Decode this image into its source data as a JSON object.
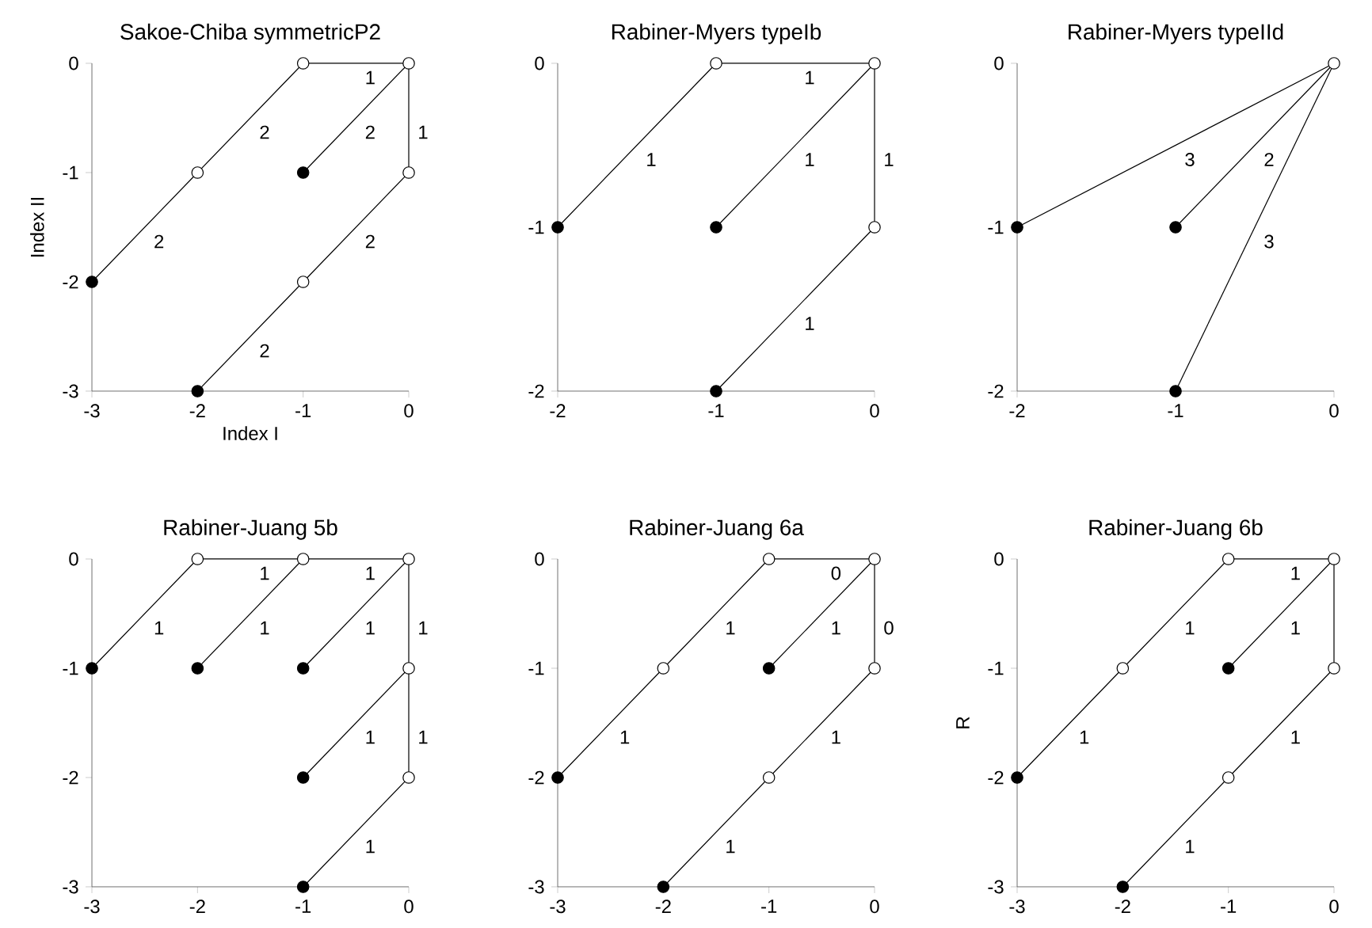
{
  "chart_data": [
    {
      "type": "line",
      "title": "Sakoe-Chiba symmetricP2",
      "xlabel": "Index I",
      "ylabel": "Index II",
      "xlim": [
        -3,
        0
      ],
      "ylim": [
        -3,
        0
      ],
      "xticks": [
        -3,
        -2,
        -1,
        0
      ],
      "yticks": [
        -3,
        -2,
        -1,
        0
      ],
      "series": [
        {
          "color": "#000000",
          "x": [
            -3,
            -2,
            -1,
            0
          ],
          "values": [
            -2,
            -1,
            0,
            0
          ]
        },
        {
          "color": "#000000",
          "x": [
            -1,
            0
          ],
          "values": [
            -1,
            0
          ]
        },
        {
          "color": "#000000",
          "x": [
            -2,
            -1,
            0,
            0
          ],
          "values": [
            -3,
            -2,
            -1,
            0
          ]
        },
        {
          "type": "scatter",
          "color": "#ffffff",
          "x": [
            -2,
            -1,
            0,
            -1,
            0
          ],
          "values": [
            -1,
            0,
            0,
            -2,
            -1
          ]
        },
        {
          "type": "scatter",
          "color": "#000000",
          "x": [
            -3,
            -1,
            -2
          ],
          "values": [
            -2,
            -1,
            -3
          ]
        }
      ],
      "annotations": [
        {
          "text": "2",
          "x": -2.5,
          "y": -1.5
        },
        {
          "text": "2",
          "x": -1.5,
          "y": -0.5
        },
        {
          "text": "1",
          "x": -0.5,
          "y": 0
        },
        {
          "text": "2",
          "x": -0.5,
          "y": -0.5
        },
        {
          "text": "2",
          "x": -1.5,
          "y": -2.5
        },
        {
          "text": "2",
          "x": -0.5,
          "y": -1.5
        },
        {
          "text": "1",
          "x": 0,
          "y": -0.5
        }
      ]
    },
    {
      "type": "line",
      "title": "Rabiner-Myers typeIb",
      "xlim": [
        -2,
        0
      ],
      "ylim": [
        -2,
        0
      ],
      "xticks": [
        -2,
        -1,
        0
      ],
      "yticks": [
        -2,
        -1,
        0
      ],
      "series": [
        {
          "color": "#000000",
          "x": [
            -2,
            -1,
            0
          ],
          "values": [
            -1,
            0,
            0
          ]
        },
        {
          "color": "#000000",
          "x": [
            -1,
            0
          ],
          "values": [
            -1,
            0
          ]
        },
        {
          "color": "#000000",
          "x": [
            -1,
            0,
            0
          ],
          "values": [
            -2,
            -1,
            0
          ]
        },
        {
          "type": "scatter",
          "color": "#ffffff",
          "x": [
            -1,
            0,
            0
          ],
          "values": [
            0,
            0,
            -1
          ]
        },
        {
          "type": "scatter",
          "color": "#000000",
          "x": [
            -2,
            -1,
            -1
          ],
          "values": [
            -1,
            -1,
            -2
          ]
        }
      ],
      "annotations": [
        {
          "text": "1",
          "x": -1.5,
          "y": -0.5
        },
        {
          "text": "1",
          "x": -0.5,
          "y": 0
        },
        {
          "text": "1",
          "x": -0.5,
          "y": -0.5
        },
        {
          "text": "1",
          "x": -0.5,
          "y": -1.5
        },
        {
          "text": "1",
          "x": 0,
          "y": -0.5
        }
      ]
    },
    {
      "type": "line",
      "title": "Rabiner-Myers typeIId",
      "xlim": [
        -2,
        0
      ],
      "ylim": [
        -2,
        0
      ],
      "xticks": [
        -2,
        -1,
        0
      ],
      "yticks": [
        -2,
        -1,
        0
      ],
      "series": [
        {
          "color": "#000000",
          "x": [
            -2,
            0
          ],
          "values": [
            -1,
            0
          ]
        },
        {
          "color": "#000000",
          "x": [
            -1,
            0
          ],
          "values": [
            -1,
            0
          ]
        },
        {
          "color": "#000000",
          "x": [
            -1,
            0
          ],
          "values": [
            -2,
            0
          ]
        },
        {
          "type": "scatter",
          "color": "#ffffff",
          "x": [
            0
          ],
          "values": [
            0
          ]
        },
        {
          "type": "scatter",
          "color": "#000000",
          "x": [
            -2,
            -1,
            -1
          ],
          "values": [
            -1,
            -1,
            -2
          ]
        }
      ],
      "annotations": [
        {
          "text": "3",
          "x": -1,
          "y": -0.5
        },
        {
          "text": "2",
          "x": -0.5,
          "y": -0.5
        },
        {
          "text": "3",
          "x": -0.5,
          "y": -1
        }
      ]
    },
    {
      "type": "line",
      "title": "Rabiner-Juang 5b",
      "xlim": [
        -3,
        0
      ],
      "ylim": [
        -3,
        0
      ],
      "xticks": [
        -3,
        -2,
        -1,
        0
      ],
      "yticks": [
        -3,
        -2,
        -1,
        0
      ],
      "series": [
        {
          "color": "#000000",
          "x": [
            -3,
            -2,
            -1,
            0
          ],
          "values": [
            -1,
            0,
            0,
            0
          ]
        },
        {
          "color": "#000000",
          "x": [
            -2,
            -1
          ],
          "values": [
            -1,
            0
          ]
        },
        {
          "color": "#000000",
          "x": [
            -1,
            0
          ],
          "values": [
            -1,
            0
          ]
        },
        {
          "color": "#000000",
          "x": [
            -1,
            0
          ],
          "values": [
            -2,
            -1
          ]
        },
        {
          "color": "#000000",
          "x": [
            -1,
            0,
            0,
            0
          ],
          "values": [
            -3,
            -2,
            -1,
            0
          ]
        },
        {
          "type": "scatter",
          "color": "#ffffff",
          "x": [
            -2,
            -1,
            0,
            0,
            0
          ],
          "values": [
            0,
            0,
            0,
            -1,
            -2
          ]
        },
        {
          "type": "scatter",
          "color": "#000000",
          "x": [
            -3,
            -2,
            -1,
            -1,
            -1
          ],
          "values": [
            -1,
            -1,
            -1,
            -2,
            -3
          ]
        }
      ],
      "annotations": [
        {
          "text": "1",
          "x": -2.5,
          "y": -0.5
        },
        {
          "text": "1",
          "x": -1.5,
          "y": 0
        },
        {
          "text": "1",
          "x": -1.5,
          "y": -0.5
        },
        {
          "text": "1",
          "x": -0.5,
          "y": 0
        },
        {
          "text": "1",
          "x": -0.5,
          "y": -0.5
        },
        {
          "text": "1",
          "x": 0,
          "y": -0.5
        },
        {
          "text": "1",
          "x": -0.5,
          "y": -1.5
        },
        {
          "text": "1",
          "x": 0,
          "y": -1.5
        },
        {
          "text": "1",
          "x": -0.5,
          "y": -2.5
        }
      ]
    },
    {
      "type": "line",
      "title": "Rabiner-Juang 6a",
      "xlim": [
        -3,
        0
      ],
      "ylim": [
        -3,
        0
      ],
      "xticks": [
        -3,
        -2,
        -1,
        0
      ],
      "yticks": [
        -3,
        -2,
        -1,
        0
      ],
      "series": [
        {
          "color": "#000000",
          "x": [
            -3,
            -2,
            -1,
            0
          ],
          "values": [
            -2,
            -1,
            0,
            0
          ]
        },
        {
          "color": "#000000",
          "x": [
            -1,
            0
          ],
          "values": [
            -1,
            0
          ]
        },
        {
          "color": "#000000",
          "x": [
            -2,
            -1,
            0,
            0
          ],
          "values": [
            -3,
            -2,
            -1,
            0
          ]
        },
        {
          "type": "scatter",
          "color": "#ffffff",
          "x": [
            -2,
            -1,
            0,
            -1,
            0
          ],
          "values": [
            -1,
            0,
            0,
            -2,
            -1
          ]
        },
        {
          "type": "scatter",
          "color": "#000000",
          "x": [
            -3,
            -1,
            -2
          ],
          "values": [
            -2,
            -1,
            -3
          ]
        }
      ],
      "annotations": [
        {
          "text": "1",
          "x": -2.5,
          "y": -1.5
        },
        {
          "text": "1",
          "x": -1.5,
          "y": -0.5
        },
        {
          "text": "0",
          "x": -0.5,
          "y": 0
        },
        {
          "text": "1",
          "x": -0.5,
          "y": -0.5
        },
        {
          "text": "1",
          "x": -1.5,
          "y": -2.5
        },
        {
          "text": "1",
          "x": -0.5,
          "y": -1.5
        },
        {
          "text": "0",
          "x": 0,
          "y": -0.5
        }
      ]
    },
    {
      "type": "line",
      "title": "Rabiner-Juang 6b",
      "ylabel": "R",
      "xlim": [
        -3,
        0
      ],
      "ylim": [
        -3,
        0
      ],
      "xticks": [
        -3,
        -2,
        -1,
        0
      ],
      "yticks": [
        -3,
        -2,
        -1,
        0
      ],
      "series": [
        {
          "color": "#000000",
          "x": [
            -3,
            -2,
            -1,
            0
          ],
          "values": [
            -2,
            -1,
            0,
            0
          ]
        },
        {
          "color": "#000000",
          "x": [
            -1,
            0
          ],
          "values": [
            -1,
            0
          ]
        },
        {
          "color": "#000000",
          "x": [
            -2,
            -1,
            0,
            0
          ],
          "values": [
            -3,
            -2,
            -1,
            0
          ]
        },
        {
          "type": "scatter",
          "color": "#ffffff",
          "x": [
            -2,
            -1,
            0,
            -1,
            0
          ],
          "values": [
            -1,
            0,
            0,
            -2,
            -1
          ]
        },
        {
          "type": "scatter",
          "color": "#000000",
          "x": [
            -3,
            -1,
            -2
          ],
          "values": [
            -2,
            -1,
            -3
          ]
        }
      ],
      "annotations": [
        {
          "text": "1",
          "x": -2.5,
          "y": -1.5
        },
        {
          "text": "1",
          "x": -1.5,
          "y": -0.5
        },
        {
          "text": "1",
          "x": -0.5,
          "y": 0
        },
        {
          "text": "1",
          "x": -0.5,
          "y": -0.5
        },
        {
          "text": "1",
          "x": -1.5,
          "y": -2.5
        },
        {
          "text": "1",
          "x": -0.5,
          "y": -1.5
        }
      ]
    }
  ]
}
